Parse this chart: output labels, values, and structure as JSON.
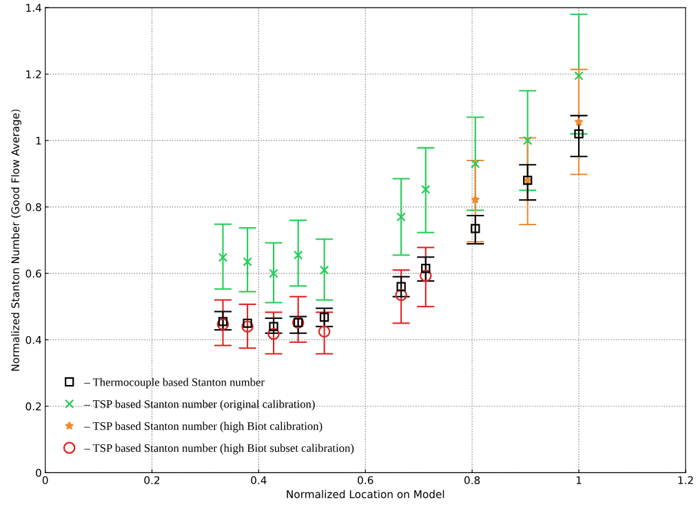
{
  "chart_data": {
    "type": "scatter",
    "xlabel": "Normalized Location on Model",
    "ylabel": "Normalized Stanton Number (Good Flow Average)",
    "xlim": [
      0,
      1.2
    ],
    "xticks": [
      0,
      0.2,
      0.4,
      0.6,
      0.8,
      1,
      1.2
    ],
    "ylim": [
      0,
      1.4
    ],
    "yticks": [
      0,
      0.2,
      0.4,
      0.6,
      0.8,
      1,
      1.2,
      1.4
    ],
    "grid": true,
    "legend": "bottom left",
    "series": [
      {
        "name": "– Thermocouple based Stanton number",
        "color": "#000000",
        "marker": "square",
        "x": [
          0.333,
          0.379,
          0.428,
          0.474,
          0.523,
          0.667,
          0.713,
          0.806,
          0.904,
          1.0
        ],
        "values": [
          0.455,
          0.45,
          0.44,
          0.452,
          0.468,
          0.56,
          0.615,
          0.735,
          0.88,
          1.02
        ],
        "errors": [
          [
            0.43,
            0.485
          ],
          null,
          [
            0.42,
            0.465
          ],
          [
            0.42,
            0.47
          ],
          [
            0.44,
            0.495
          ],
          [
            0.53,
            0.59
          ],
          [
            0.577,
            0.649
          ],
          [
            0.689,
            0.774
          ],
          [
            0.821,
            0.927
          ],
          [
            0.952,
            1.075
          ]
        ]
      },
      {
        "name": "– TSP based Stanton number (original calibration)",
        "color": "#22cc55",
        "marker": "cross",
        "x": [
          0.333,
          0.379,
          0.428,
          0.474,
          0.523,
          0.667,
          0.713,
          0.806,
          0.904,
          1.0
        ],
        "values": [
          0.648,
          0.635,
          0.6,
          0.655,
          0.61,
          0.77,
          0.853,
          0.93,
          1.0,
          1.195
        ],
        "errors": [
          [
            0.553,
            0.748
          ],
          [
            0.545,
            0.737
          ],
          [
            0.512,
            0.692
          ],
          [
            0.562,
            0.76
          ],
          [
            0.52,
            0.703
          ],
          [
            0.655,
            0.885
          ],
          [
            0.723,
            0.978
          ],
          [
            0.79,
            1.07
          ],
          [
            0.85,
            1.15
          ],
          [
            1.02,
            1.38
          ]
        ]
      },
      {
        "name": "– TSP based Stanton number (high Biot calibration)",
        "color": "#f08a30",
        "marker": "star",
        "x": [
          0.806,
          0.904,
          1.0
        ],
        "values": [
          0.822,
          0.88,
          1.056
        ],
        "errors": [
          [
            0.695,
            0.94
          ],
          [
            0.747,
            1.008
          ],
          [
            0.898,
            1.214
          ]
        ]
      },
      {
        "name": "– TSP based Stanton number (high Biot subset calibration)",
        "color": "#e02020",
        "marker": "circle",
        "x": [
          0.333,
          0.379,
          0.428,
          0.474,
          0.523,
          0.667,
          0.713
        ],
        "values": [
          0.447,
          0.44,
          0.418,
          0.452,
          0.425,
          0.535,
          0.593
        ],
        "errors": [
          [
            0.383,
            0.52
          ],
          [
            0.375,
            0.507
          ],
          [
            0.358,
            0.483
          ],
          [
            0.393,
            0.53
          ],
          [
            0.358,
            0.483
          ],
          [
            0.45,
            0.61
          ],
          [
            0.5,
            0.678
          ]
        ]
      }
    ]
  }
}
